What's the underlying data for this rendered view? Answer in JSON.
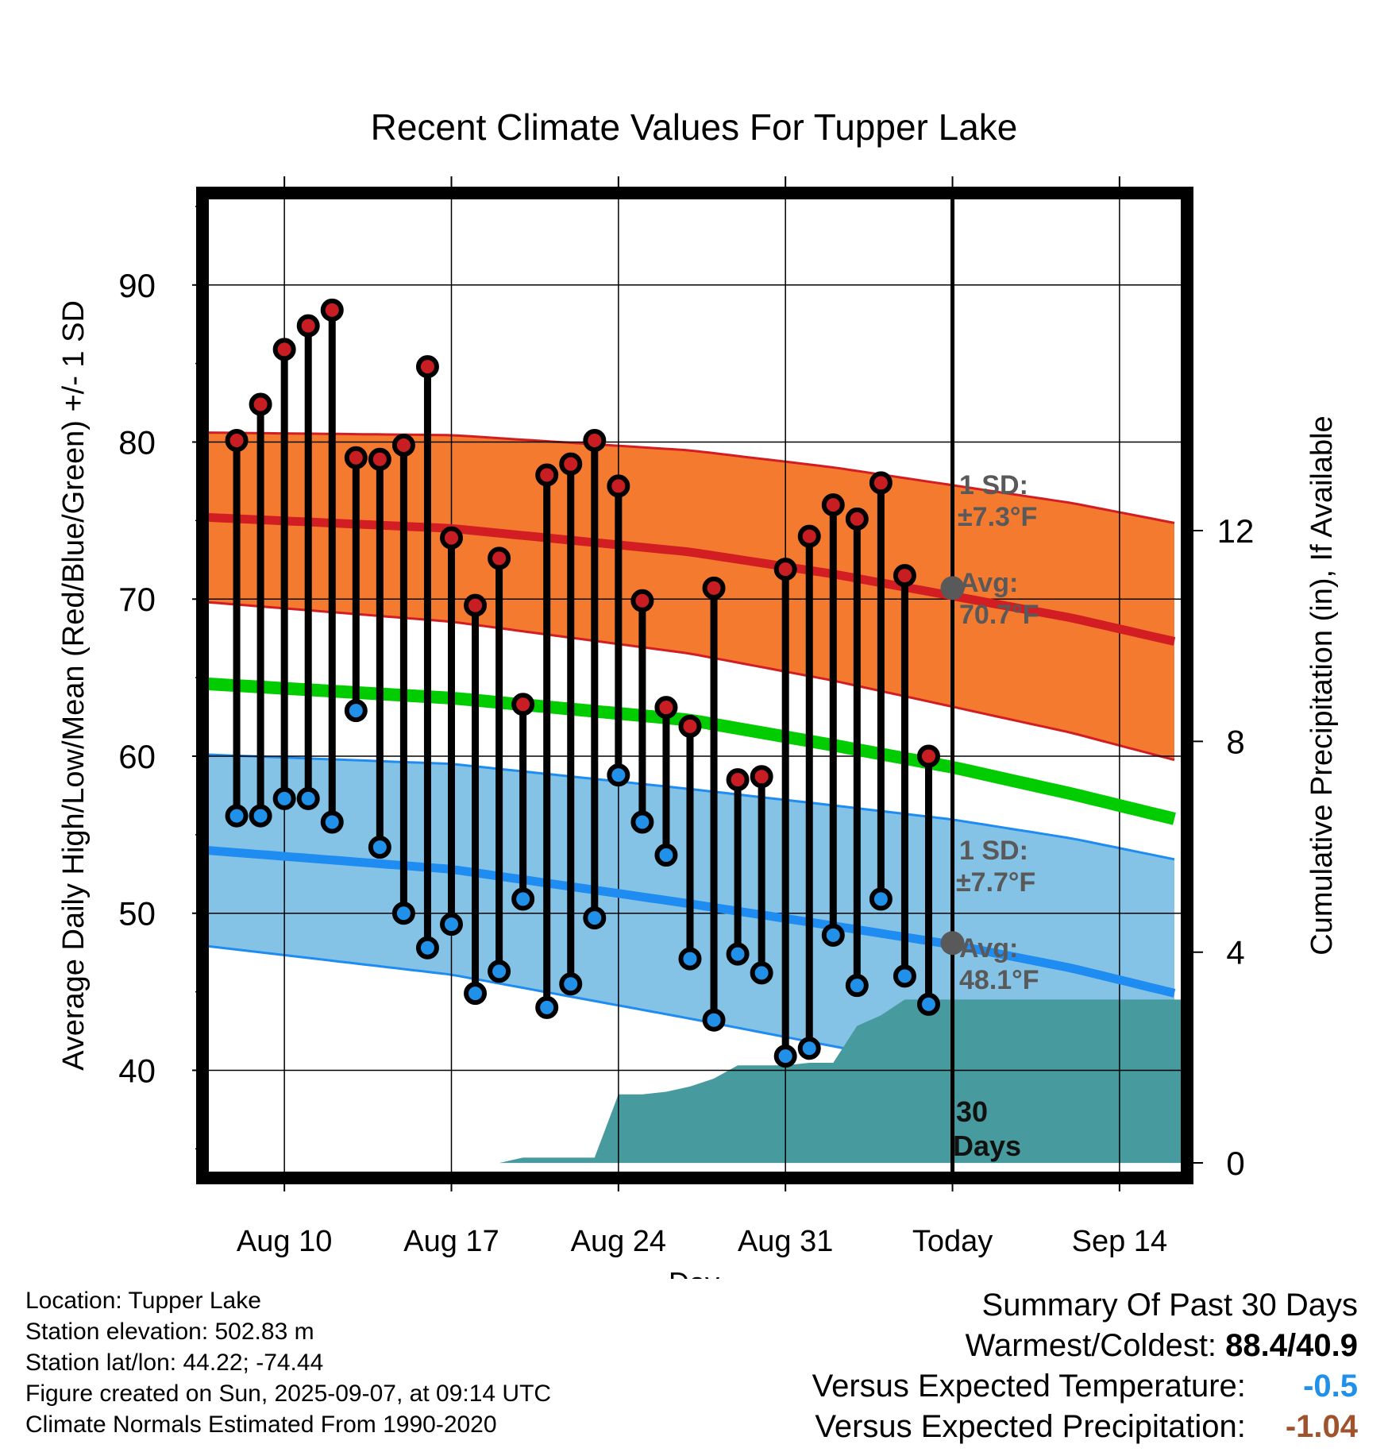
{
  "chart_data": {
    "type": "line",
    "title": "Recent Climate Values For Tupper Lake",
    "xlabel": "Day",
    "ylabel": "Average Daily High/Low/Mean (Red/Blue/Green) +/- 1 SD",
    "y2label": "Cumulative Precipitation (in), If Available",
    "x_ticks": [
      {
        "day": 9,
        "label": "Aug 10"
      },
      {
        "day": 16,
        "label": "Aug 17"
      },
      {
        "day": 23,
        "label": "Aug 24"
      },
      {
        "day": 30,
        "label": "Aug 31"
      },
      {
        "day": 37,
        "label": "Today"
      },
      {
        "day": 44,
        "label": "Sep 14"
      }
    ],
    "x_range_days": [
      5.8,
      46.6
    ],
    "ylim": [
      33.5,
      95.5
    ],
    "yticks": [
      40,
      50,
      60,
      70,
      80,
      90
    ],
    "y2lim": [
      -0.18,
      18.3
    ],
    "y2ticks": [
      0,
      4,
      8,
      12
    ],
    "grid": true,
    "today_day": 37,
    "days": [
      7,
      8,
      9,
      10,
      11,
      12,
      13,
      14,
      15,
      16,
      17,
      18,
      19,
      20,
      21,
      22,
      23,
      24,
      25,
      26,
      27,
      28,
      29,
      30,
      31,
      32,
      33,
      34,
      35,
      36
    ],
    "highs": [
      80.1,
      82.4,
      85.9,
      87.4,
      88.4,
      79.0,
      78.9,
      79.8,
      84.8,
      73.9,
      69.6,
      72.6,
      63.3,
      77.9,
      78.6,
      80.1,
      77.2,
      69.9,
      63.1,
      61.9,
      70.7,
      58.5,
      58.7,
      71.9,
      74.0,
      76.0,
      75.1,
      77.4,
      71.5,
      60.0
    ],
    "lows": [
      56.2,
      56.2,
      57.3,
      57.3,
      55.8,
      62.9,
      54.2,
      50.0,
      47.8,
      49.3,
      44.9,
      46.3,
      50.9,
      44.0,
      45.5,
      49.7,
      58.8,
      55.8,
      53.7,
      47.1,
      43.2,
      47.4,
      46.2,
      40.9,
      41.4,
      48.6,
      45.4,
      50.9,
      46.0,
      44.2
    ],
    "normal_high_days": [
      5.8,
      16,
      26,
      32,
      37,
      42,
      46.6
    ],
    "normal_high": [
      75.2,
      74.5,
      73.0,
      71.6,
      70.2,
      68.8,
      67.2
    ],
    "normal_low": [
      54.0,
      52.8,
      50.6,
      49.2,
      48.0,
      46.5,
      44.8
    ],
    "normal_mean": [
      64.6,
      63.7,
      62.3,
      60.7,
      59.3,
      57.6,
      55.9
    ],
    "sd_high": "±7.3°F",
    "sd_low": "±7.7°F",
    "avg_high_label": "70.7°F",
    "avg_low_label": "48.1°F",
    "sd_label": "1 SD:",
    "avg_label": "Avg:",
    "period_label": [
      "30",
      "Days"
    ],
    "precip_days": [
      6,
      7,
      8,
      9,
      10,
      11,
      12,
      13,
      14,
      15,
      16,
      17,
      18,
      19,
      20,
      21,
      22,
      23,
      24,
      25,
      26,
      27,
      28,
      29,
      30,
      31,
      32,
      33,
      34,
      35,
      36,
      37,
      46.6
    ],
    "precip_cum": [
      0,
      0,
      0,
      0,
      0,
      0,
      0,
      0,
      0,
      0,
      0,
      0,
      0,
      0,
      0,
      0,
      0,
      0,
      0,
      0,
      0,
      0,
      0,
      0,
      0,
      0,
      0,
      0,
      0,
      0,
      0,
      0,
      0
    ],
    "precip_cum_actual": [
      0,
      0,
      0,
      0,
      0,
      0,
      0,
      0,
      0,
      0,
      0,
      0,
      0,
      0.1,
      0.1,
      0.1,
      0.1,
      1.3,
      1.3,
      1.35,
      1.45,
      1.6,
      1.85,
      1.85,
      1.85,
      1.9,
      1.9,
      2.6,
      2.8,
      3.1,
      3.1,
      3.1,
      3.1
    ],
    "colors": {
      "high_band": "#f47a30",
      "high_line": "#d21e23",
      "low_band": "#84c2e6",
      "low_line": "#1e8cf0",
      "mean_line": "#00cc00",
      "precip": "#479a9e",
      "high_dot": "#c81e23",
      "low_dot": "#2090e8",
      "avg_marker": "#595959",
      "annotation": "#595959"
    }
  },
  "footer_left": {
    "location": "Location: Tupper Lake",
    "elevation": "Station elevation: 502.83 m",
    "latlon": "Station lat/lon: 44.22; -74.44",
    "created": "Figure created on Sun, 2025-09-07, at 09:14 UTC",
    "normals": "Climate Normals Estimated From 1990-2020"
  },
  "summary": {
    "title": "Summary Of Past 30 Days",
    "warm_cold_label": "Warmest/Coldest:",
    "warm_cold_value": "88.4/40.9",
    "temp_label": "Versus Expected Temperature:",
    "temp_value": "-0.5",
    "temp_color": "#2090e8",
    "precip_label": "Versus Expected Precipitation:",
    "precip_value": "-1.04",
    "precip_color": "#a0522d"
  }
}
